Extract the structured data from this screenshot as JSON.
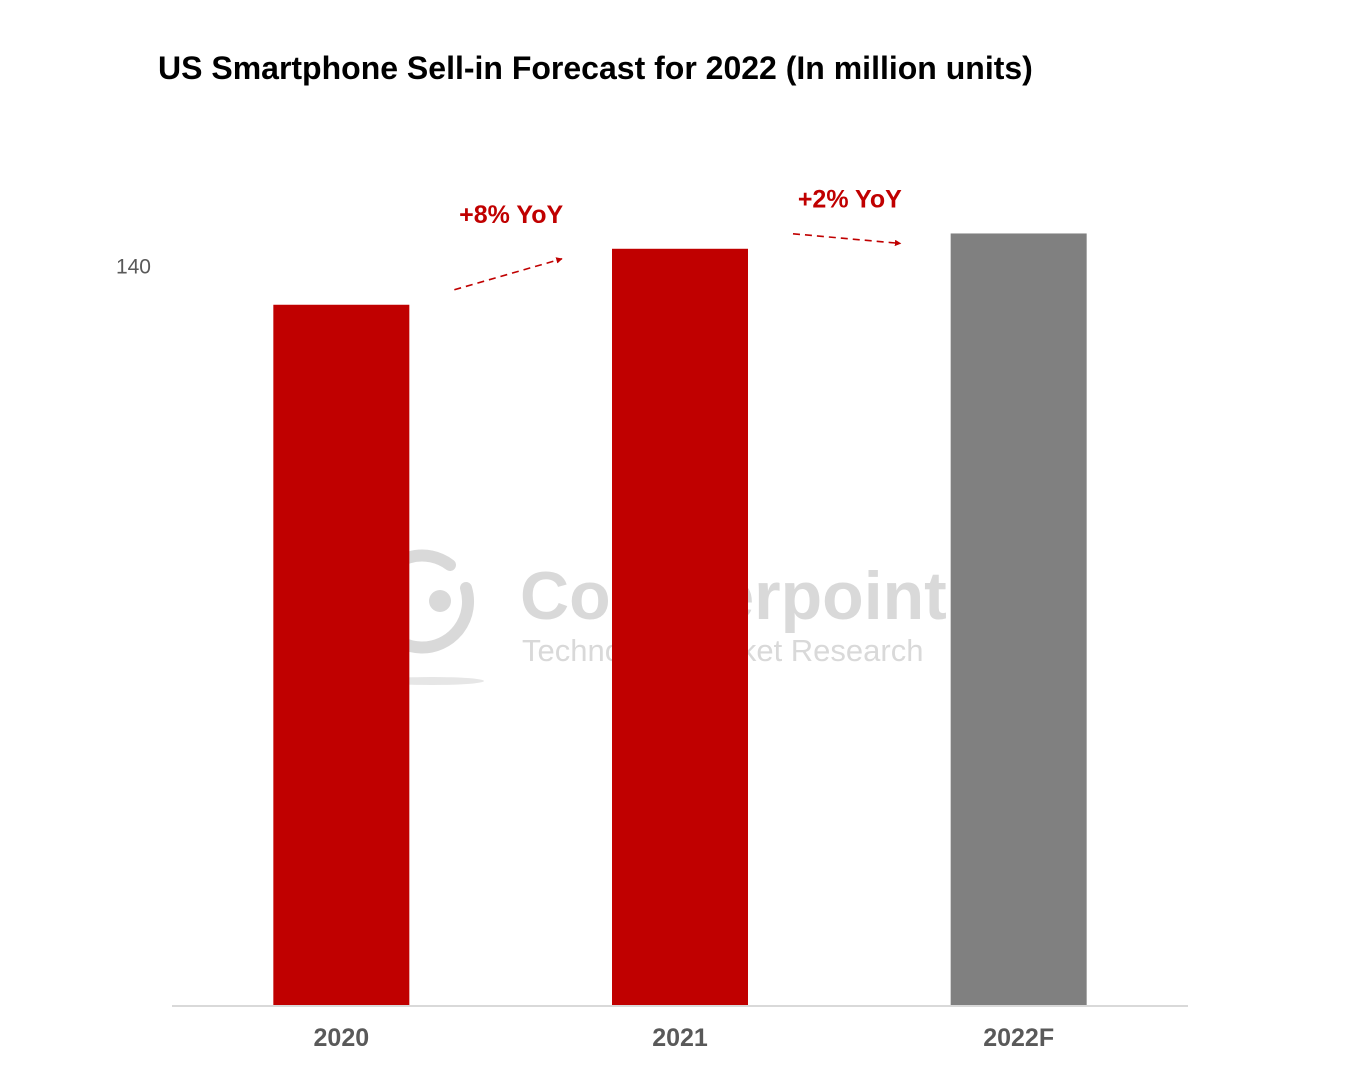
{
  "colors": {
    "actual": "#c00000",
    "forecast": "#808080",
    "annotation": "#c00000",
    "axis": "#d9d9d9",
    "watermark": "#d9d9d9"
  },
  "watermark": {
    "brand": "Counterpoint",
    "tagline": "Technology Market Research"
  },
  "chart_data": {
    "type": "bar",
    "title": "US Smartphone Sell-in Forecast for 2022 (In million units)",
    "categories": [
      "2020",
      "2021",
      "2022F"
    ],
    "series": [
      {
        "values": [
          132.8,
          143.4,
          146.3
        ]
      }
    ],
    "bar_colors": [
      "#c00000",
      "#c00000",
      "#808080"
    ],
    "y_ticks": [
      140
    ],
    "ylim": [
      0,
      164
    ],
    "xlabel": "",
    "ylabel": "",
    "grid": false,
    "annotations": [
      {
        "text": "+8% YoY",
        "from": "2020",
        "to": "2021"
      },
      {
        "text": "+2% YoY",
        "from": "2021",
        "to": "2022F"
      }
    ]
  }
}
